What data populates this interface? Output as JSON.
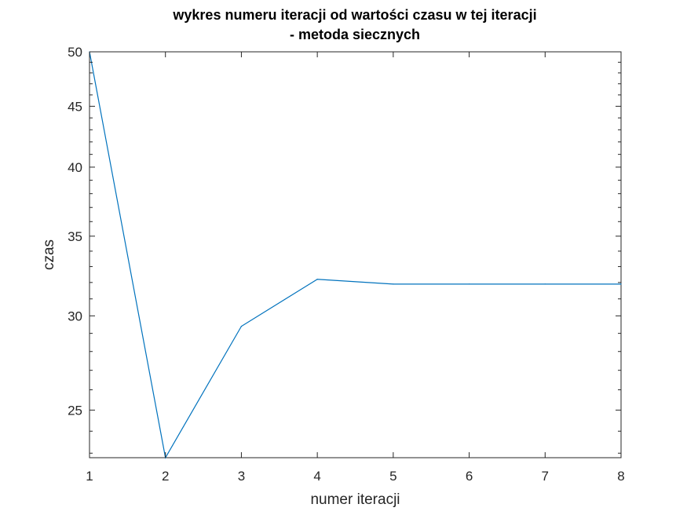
{
  "chart_data": {
    "type": "line",
    "title_lines": [
      "wykres numeru iteracji od wartości czasu w tej iteracji",
      "- metoda siecznych"
    ],
    "xlabel": "numer iteracji",
    "ylabel": "czas",
    "xlim": [
      1,
      8
    ],
    "ylim": [
      22.8,
      50
    ],
    "y_scale": "log",
    "x_ticks": [
      1,
      2,
      3,
      4,
      5,
      6,
      7,
      8
    ],
    "y_ticks": [
      25,
      30,
      35,
      40,
      45,
      50
    ],
    "grid": false,
    "box": true,
    "series": [
      {
        "color": "#0072bd",
        "x": [
          1,
          2,
          3,
          4,
          5,
          6,
          7,
          8
        ],
        "y": [
          50,
          22.8,
          29.4,
          32.2,
          31.9,
          31.9,
          31.9,
          31.9
        ]
      }
    ]
  }
}
